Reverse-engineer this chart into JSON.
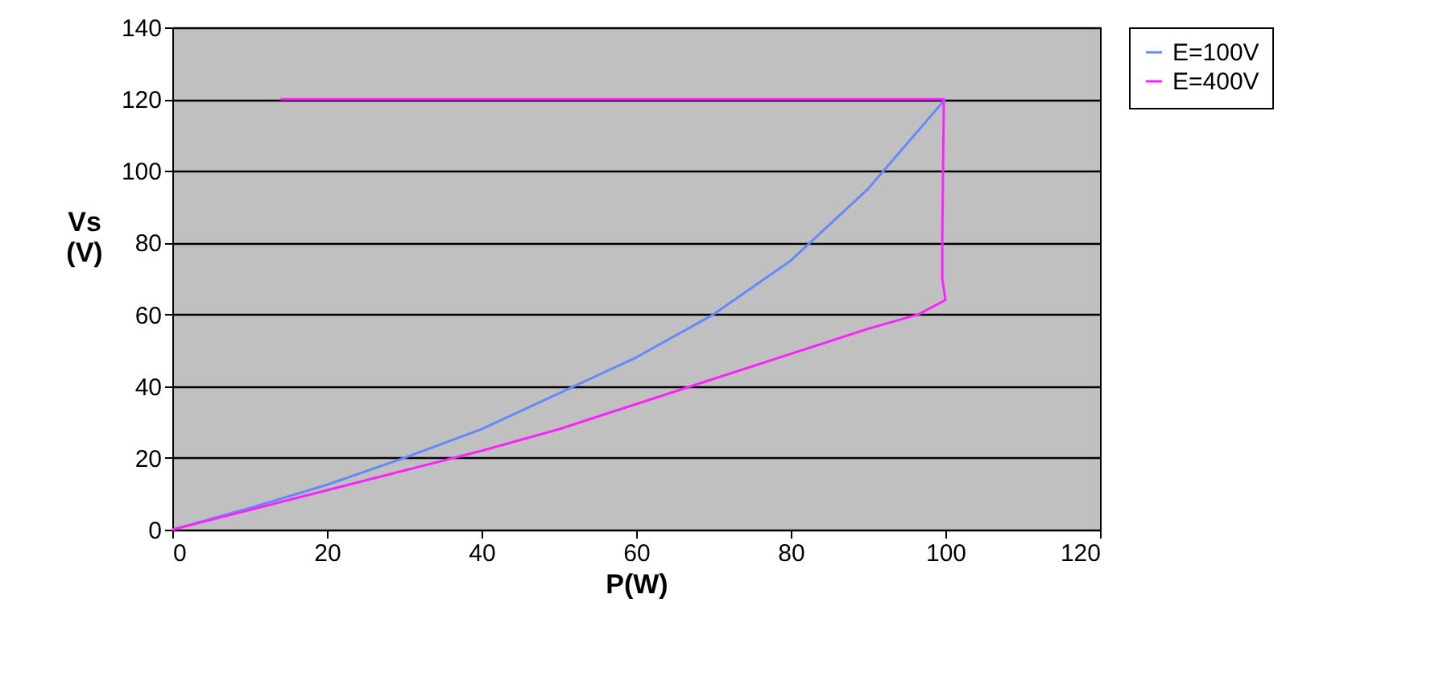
{
  "chart_data": {
    "type": "line",
    "xlabel": "P(W)",
    "ylabel": "Vs (V)",
    "xlim": [
      0,
      120
    ],
    "xticks": [
      0,
      20,
      40,
      60,
      80,
      100,
      120
    ],
    "ylim": [
      0,
      140
    ],
    "yticks": [
      0,
      20,
      40,
      60,
      80,
      100,
      120,
      140
    ],
    "grid": "y",
    "legend": "right",
    "marker": "none",
    "line_style": "solid",
    "series": [
      {
        "name": "E=100V",
        "color": "#6688ff",
        "x": [
          0,
          10,
          20,
          30,
          40,
          50,
          60,
          70,
          80,
          90,
          100
        ],
        "values": [
          0,
          6,
          12.5,
          20,
          28,
          38,
          48,
          60,
          75,
          95,
          120
        ]
      },
      {
        "name": "E=400V",
        "color": "#ff22ff",
        "x": [
          0,
          10,
          20,
          30,
          40,
          50,
          60,
          70,
          80,
          90,
          96.5,
          100,
          99.6,
          99.6,
          99.8,
          14
        ],
        "values": [
          0,
          5.5,
          11,
          16.5,
          22,
          28,
          35,
          42,
          49,
          56,
          60,
          64,
          70,
          82,
          120,
          120
        ]
      }
    ]
  }
}
